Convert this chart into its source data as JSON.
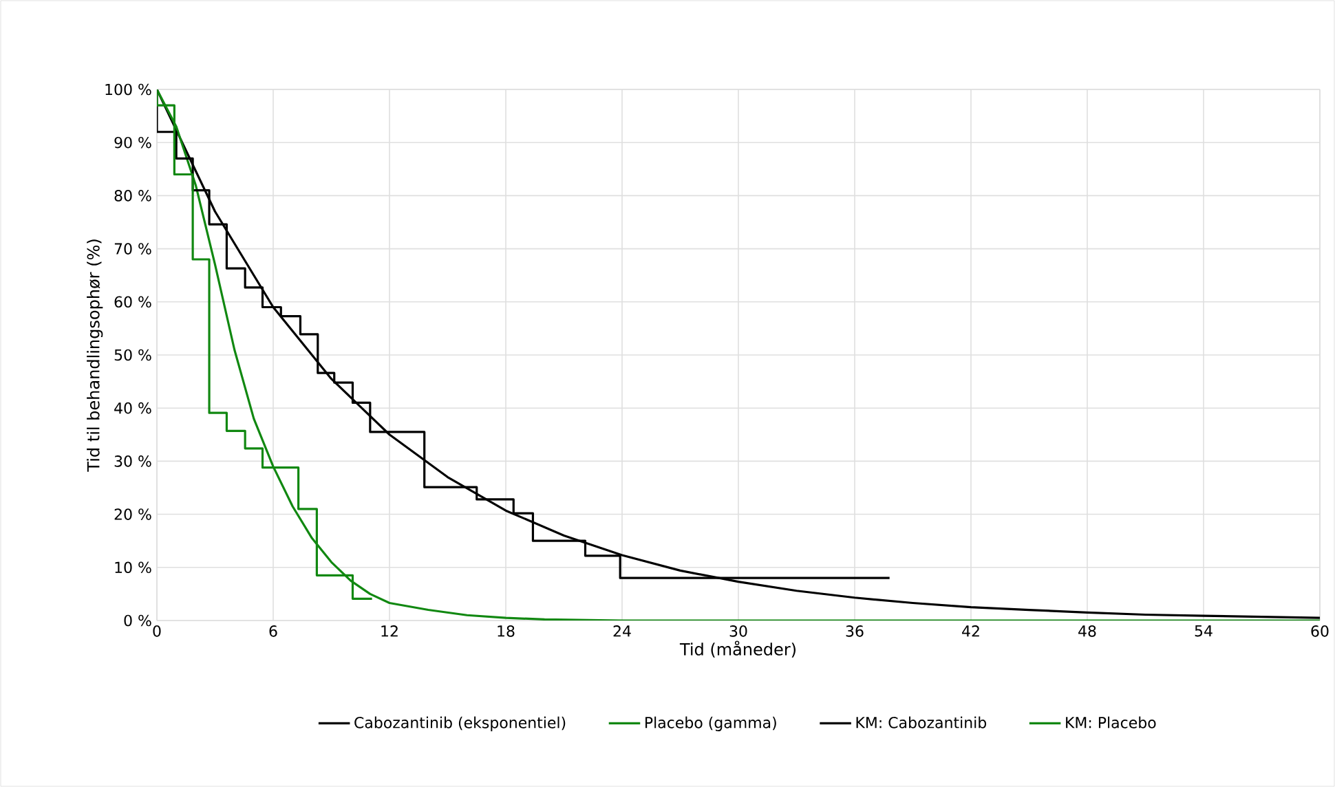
{
  "chart_data": {
    "type": "line",
    "xlabel": "Tid (måneder)",
    "ylabel": "Tid til behandlingsophør (%)",
    "xlim": [
      0,
      60
    ],
    "ylim": [
      0,
      100
    ],
    "xticks": [
      0,
      6,
      12,
      18,
      24,
      30,
      36,
      42,
      48,
      54,
      60
    ],
    "yticks": [
      {
        "value": 0,
        "label": "0 %"
      },
      {
        "value": 10,
        "label": "10 %"
      },
      {
        "value": 20,
        "label": "20 %"
      },
      {
        "value": 30,
        "label": "30 %"
      },
      {
        "value": 40,
        "label": "40 %"
      },
      {
        "value": 50,
        "label": "50 %"
      },
      {
        "value": 60,
        "label": "60 %"
      },
      {
        "value": 70,
        "label": "70 %"
      },
      {
        "value": 80,
        "label": "80 %"
      },
      {
        "value": 90,
        "label": "90 %"
      },
      {
        "value": 100,
        "label": "100 %"
      }
    ],
    "grid": true,
    "legend": "bottom",
    "marker": "none",
    "series": [
      {
        "name": "Cabozantinib (eksponentiel)",
        "color": "#000000",
        "x": [
          0,
          3,
          6,
          9,
          12,
          15,
          18,
          21,
          24,
          27,
          30,
          33,
          36,
          39,
          42,
          45,
          48,
          51,
          54,
          57,
          60
        ],
        "values": [
          100,
          77,
          59,
          45.5,
          35,
          27,
          20.7,
          16,
          12.3,
          9.4,
          7.3,
          5.6,
          4.3,
          3.3,
          2.5,
          2,
          1.5,
          1.1,
          0.9,
          0.7,
          0.5
        ]
      },
      {
        "name": "Placebo (gamma)",
        "color": "#118811",
        "x": [
          0,
          1,
          2,
          3,
          4,
          5,
          6,
          7,
          8,
          9,
          10,
          11,
          12,
          14,
          16,
          18,
          20,
          24,
          60
        ],
        "values": [
          100,
          93,
          82,
          67,
          51,
          38,
          29,
          21.5,
          15.5,
          11,
          7.5,
          5,
          3.3,
          2,
          1,
          0.5,
          0.2,
          0,
          0
        ]
      },
      {
        "name": "KM: Cabozantinib",
        "type": "step",
        "color": "#000000",
        "x": [
          0,
          0,
          1.0,
          1.85,
          2.7,
          3.6,
          4.55,
          5.45,
          6.4,
          7.4,
          8.3,
          9.15,
          10.1,
          11.0,
          13.8,
          16.5,
          18.4,
          19.4,
          22.1,
          23.9,
          37.8
        ],
        "values": [
          100,
          92,
          87,
          81,
          74.6,
          66.3,
          62.7,
          59,
          57.3,
          53.9,
          46.6,
          44.8,
          41,
          35.5,
          25.1,
          22.8,
          20.2,
          15,
          12.2,
          8,
          8
        ]
      },
      {
        "name": "KM: Placebo",
        "type": "step",
        "color": "#118811",
        "x": [
          0,
          0,
          0.9,
          1.85,
          2.7,
          3.6,
          4.55,
          5.45,
          7.3,
          8.25,
          10.1,
          11.1
        ],
        "values": [
          100,
          97,
          84,
          68,
          39.1,
          35.7,
          32.4,
          28.8,
          21,
          8.5,
          4.1,
          4.1
        ]
      }
    ]
  }
}
